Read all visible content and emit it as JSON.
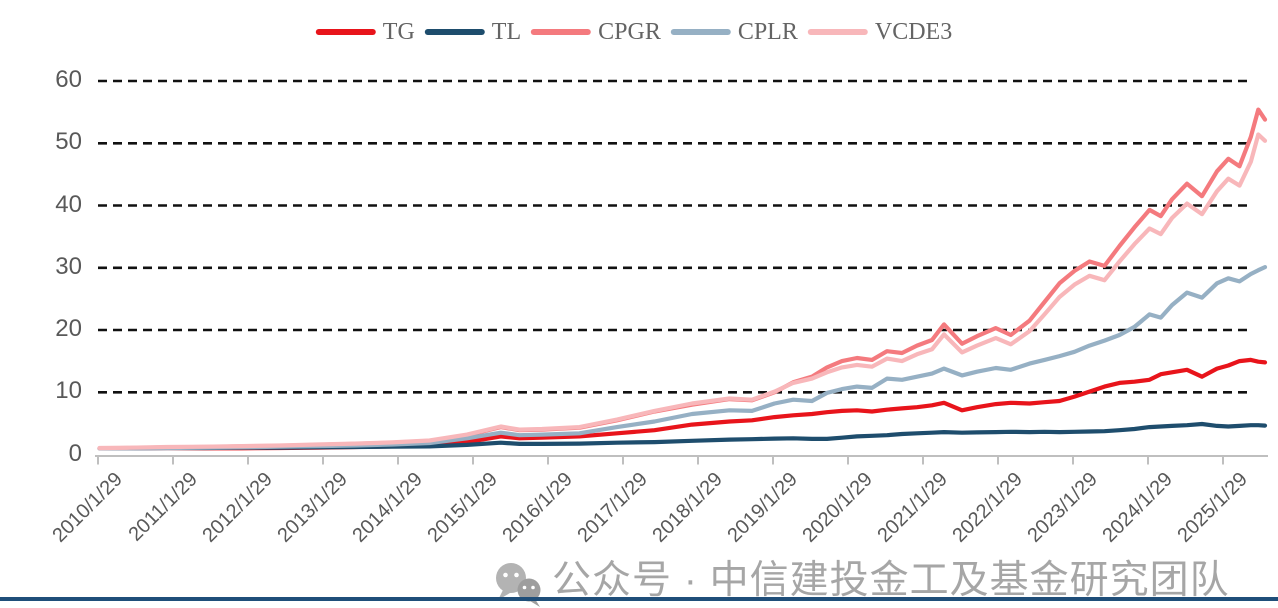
{
  "legend": {
    "items": [
      {
        "label": "TG",
        "color": "#e8141b"
      },
      {
        "label": "TL",
        "color": "#1e4d6d"
      },
      {
        "label": "CPGR",
        "color": "#f47a7e"
      },
      {
        "label": "CPLR",
        "color": "#96b0c4"
      },
      {
        "label": "VCDE3",
        "color": "#f8b7ba"
      }
    ]
  },
  "watermark": {
    "text": "公众号 · 中信建投金工及基金研究团队",
    "icon": "wechat-icon"
  },
  "chart_data": {
    "type": "line",
    "title": "",
    "legend_position": "top",
    "grid": "horizontal-dashed",
    "style": {
      "grid_color": "#111111",
      "axis_color": "#bfbfbf",
      "label_color": "#595959",
      "line_width": 4.2
    },
    "y_axis": {
      "min": 0,
      "max": 60,
      "ticks": [
        60,
        50,
        40,
        30,
        20,
        10,
        0
      ],
      "grid_ticks": [
        60,
        50,
        40,
        30,
        20,
        10
      ]
    },
    "x_axis": {
      "tick_labels": [
        "2010/1/29",
        "2011/1/29",
        "2012/1/29",
        "2013/1/29",
        "2014/1/29",
        "2015/1/29",
        "2016/1/29",
        "2017/1/29",
        "2018/1/29",
        "2019/1/29",
        "2020/1/29",
        "2021/1/29",
        "2022/1/29",
        "2023/1/29",
        "2024/1/29",
        "2025/1/29"
      ],
      "tick_step_years": 1
    },
    "t": [
      2010.1,
      2010.5,
      2011.0,
      2011.5,
      2012.0,
      2012.5,
      2013.0,
      2013.5,
      2014.0,
      2014.5,
      2015.0,
      2015.45,
      2015.7,
      2016.0,
      2016.5,
      2017.0,
      2017.5,
      2018.0,
      2018.5,
      2018.8,
      2019.1,
      2019.35,
      2019.6,
      2019.8,
      2020.0,
      2020.2,
      2020.4,
      2020.6,
      2020.8,
      2021.0,
      2021.2,
      2021.36,
      2021.6,
      2021.8,
      2022.05,
      2022.25,
      2022.5,
      2022.7,
      2022.9,
      2023.1,
      2023.3,
      2023.5,
      2023.7,
      2023.9,
      2024.1,
      2024.25,
      2024.4,
      2024.6,
      2024.8,
      2025.0,
      2025.15,
      2025.3,
      2025.45,
      2025.55,
      2025.64
    ],
    "series": [
      {
        "name": "TG",
        "color": "#e8141b",
        "values": [
          1.0,
          1.0,
          1.05,
          1.0,
          1.0,
          1.05,
          1.1,
          1.2,
          1.3,
          1.5,
          2.0,
          2.9,
          2.6,
          2.7,
          2.9,
          3.4,
          3.9,
          4.8,
          5.3,
          5.5,
          6.0,
          6.3,
          6.5,
          6.8,
          7.0,
          7.1,
          6.9,
          7.2,
          7.4,
          7.6,
          7.9,
          8.3,
          7.1,
          7.6,
          8.1,
          8.3,
          8.2,
          8.4,
          8.6,
          9.3,
          10.1,
          10.9,
          11.5,
          11.7,
          12.0,
          12.9,
          13.2,
          13.6,
          12.5,
          13.8,
          14.3,
          15.0,
          15.2,
          14.9,
          14.8
        ]
      },
      {
        "name": "TL",
        "color": "#1e4d6d",
        "values": [
          1.0,
          1.0,
          1.05,
          1.05,
          1.1,
          1.1,
          1.15,
          1.2,
          1.25,
          1.3,
          1.55,
          1.9,
          1.7,
          1.7,
          1.75,
          1.9,
          2.0,
          2.2,
          2.4,
          2.45,
          2.55,
          2.6,
          2.5,
          2.5,
          2.7,
          2.9,
          3.0,
          3.1,
          3.3,
          3.4,
          3.5,
          3.6,
          3.5,
          3.55,
          3.6,
          3.65,
          3.6,
          3.65,
          3.6,
          3.65,
          3.7,
          3.75,
          3.9,
          4.1,
          4.4,
          4.5,
          4.6,
          4.7,
          4.9,
          4.6,
          4.5,
          4.6,
          4.7,
          4.7,
          4.65
        ]
      },
      {
        "name": "CPGR",
        "color": "#f47a7e",
        "values": [
          1.0,
          1.05,
          1.15,
          1.2,
          1.3,
          1.4,
          1.55,
          1.7,
          1.9,
          2.2,
          3.1,
          4.4,
          3.9,
          4.0,
          4.3,
          5.5,
          6.9,
          8.0,
          8.9,
          8.7,
          10.0,
          11.6,
          12.5,
          14.0,
          15.0,
          15.5,
          15.2,
          16.6,
          16.3,
          17.5,
          18.4,
          20.9,
          17.8,
          19.0,
          20.3,
          19.2,
          21.5,
          24.5,
          27.5,
          29.5,
          31.0,
          30.3,
          33.5,
          36.5,
          39.3,
          38.3,
          41.0,
          43.5,
          41.5,
          45.5,
          47.5,
          46.3,
          51.0,
          55.4,
          53.8
        ]
      },
      {
        "name": "CPLR",
        "color": "#96b0c4",
        "values": [
          1.0,
          1.0,
          1.05,
          1.1,
          1.15,
          1.25,
          1.35,
          1.45,
          1.6,
          1.85,
          2.6,
          3.5,
          3.1,
          3.2,
          3.4,
          4.4,
          5.3,
          6.5,
          7.1,
          7.0,
          8.2,
          8.8,
          8.6,
          9.9,
          10.5,
          10.9,
          10.7,
          12.2,
          12.0,
          12.5,
          13.0,
          13.8,
          12.7,
          13.3,
          13.9,
          13.6,
          14.6,
          15.2,
          15.8,
          16.5,
          17.5,
          18.3,
          19.2,
          20.5,
          22.5,
          22.0,
          24.0,
          26.0,
          25.2,
          27.5,
          28.3,
          27.8,
          29.0,
          29.6,
          30.1
        ]
      },
      {
        "name": "VCDE3",
        "color": "#f8b7ba",
        "values": [
          1.05,
          1.1,
          1.2,
          1.25,
          1.35,
          1.45,
          1.6,
          1.75,
          1.95,
          2.25,
          3.2,
          4.5,
          4.0,
          4.1,
          4.4,
          5.6,
          7.0,
          8.2,
          9.0,
          8.8,
          10.1,
          11.5,
          12.2,
          13.2,
          14.0,
          14.4,
          14.1,
          15.4,
          15.0,
          16.1,
          16.9,
          19.3,
          16.4,
          17.5,
          18.7,
          17.7,
          19.8,
          22.5,
          25.3,
          27.3,
          28.7,
          28.0,
          31.0,
          33.8,
          36.3,
          35.4,
          38.0,
          40.3,
          38.6,
          42.3,
          44.3,
          43.2,
          47.0,
          51.4,
          50.4
        ]
      }
    ]
  }
}
